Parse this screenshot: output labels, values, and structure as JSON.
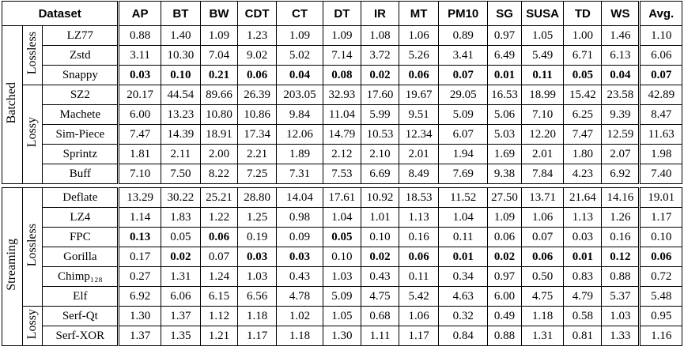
{
  "header": {
    "dataset": "Dataset",
    "columns": [
      "AP",
      "BT",
      "BW",
      "CDT",
      "CT",
      "DT",
      "IR",
      "MT",
      "PM10",
      "SG",
      "SUSA",
      "TD",
      "WS",
      "Avg."
    ]
  },
  "sections": [
    {
      "mode": "Batched",
      "groups": [
        {
          "kind": "Lossless",
          "rows": [
            {
              "name": "LZ77",
              "values": [
                "0.88",
                "1.40",
                "1.09",
                "1.23",
                "1.09",
                "1.09",
                "1.08",
                "1.06",
                "0.89",
                "0.97",
                "1.05",
                "1.00",
                "1.46",
                "1.10"
              ],
              "bold": []
            },
            {
              "name": "Zstd",
              "values": [
                "3.11",
                "10.30",
                "7.04",
                "9.02",
                "5.02",
                "7.14",
                "3.72",
                "5.26",
                "3.41",
                "6.49",
                "5.49",
                "6.71",
                "6.13",
                "6.06"
              ],
              "bold": []
            },
            {
              "name": "Snappy",
              "values": [
                "0.03",
                "0.10",
                "0.21",
                "0.06",
                "0.04",
                "0.08",
                "0.02",
                "0.06",
                "0.07",
                "0.01",
                "0.11",
                "0.05",
                "0.04",
                "0.07"
              ],
              "bold": [
                0,
                1,
                2,
                3,
                4,
                5,
                6,
                7,
                8,
                9,
                10,
                11,
                12,
                13
              ]
            }
          ]
        },
        {
          "kind": "Lossy",
          "rows": [
            {
              "name": "SZ2",
              "values": [
                "20.17",
                "44.54",
                "89.66",
                "26.39",
                "203.05",
                "32.93",
                "17.60",
                "19.67",
                "29.05",
                "16.53",
                "18.99",
                "15.42",
                "23.58",
                "42.89"
              ],
              "bold": []
            },
            {
              "name": "Machete",
              "values": [
                "6.00",
                "13.23",
                "10.80",
                "10.86",
                "9.84",
                "11.04",
                "5.99",
                "9.51",
                "5.09",
                "5.06",
                "7.10",
                "6.25",
                "9.39",
                "8.47"
              ],
              "bold": []
            },
            {
              "name": "Sim-Piece",
              "values": [
                "7.47",
                "14.39",
                "18.91",
                "17.34",
                "12.06",
                "14.79",
                "10.53",
                "12.34",
                "6.07",
                "5.03",
                "12.20",
                "7.47",
                "12.59",
                "11.63"
              ],
              "bold": []
            },
            {
              "name": "Sprintz",
              "values": [
                "1.81",
                "2.11",
                "2.00",
                "2.21",
                "1.89",
                "2.12",
                "2.10",
                "2.01",
                "1.94",
                "1.69",
                "2.01",
                "1.80",
                "2.07",
                "1.98"
              ],
              "bold": []
            },
            {
              "name": "Buff",
              "values": [
                "7.10",
                "7.50",
                "8.22",
                "7.25",
                "7.31",
                "7.53",
                "6.69",
                "8.49",
                "7.69",
                "9.38",
                "7.84",
                "4.23",
                "6.92",
                "7.40"
              ],
              "bold": []
            }
          ]
        }
      ]
    },
    {
      "mode": "Streaming",
      "groups": [
        {
          "kind": "Lossless",
          "rows": [
            {
              "name": "Deflate",
              "values": [
                "13.29",
                "30.22",
                "25.21",
                "28.80",
                "14.04",
                "17.61",
                "10.92",
                "18.53",
                "11.52",
                "27.50",
                "13.71",
                "21.64",
                "14.16",
                "19.01"
              ],
              "bold": []
            },
            {
              "name": "LZ4",
              "values": [
                "1.14",
                "1.83",
                "1.22",
                "1.25",
                "0.98",
                "1.04",
                "1.01",
                "1.13",
                "1.04",
                "1.09",
                "1.06",
                "1.13",
                "1.26",
                "1.17"
              ],
              "bold": []
            },
            {
              "name": "FPC",
              "values": [
                "0.13",
                "0.05",
                "0.06",
                "0.19",
                "0.09",
                "0.05",
                "0.10",
                "0.16",
                "0.11",
                "0.06",
                "0.07",
                "0.03",
                "0.16",
                "0.10"
              ],
              "bold": [
                0,
                2,
                5
              ]
            },
            {
              "name": "Gorilla",
              "values": [
                "0.17",
                "0.02",
                "0.07",
                "0.03",
                "0.03",
                "0.10",
                "0.02",
                "0.06",
                "0.01",
                "0.02",
                "0.06",
                "0.01",
                "0.12",
                "0.06"
              ],
              "bold": [
                1,
                3,
                4,
                6,
                7,
                8,
                9,
                10,
                11,
                12,
                13
              ]
            },
            {
              "name": "Chimp₁₂₈",
              "values": [
                "0.27",
                "1.31",
                "1.24",
                "1.03",
                "0.43",
                "1.03",
                "0.43",
                "0.11",
                "0.34",
                "0.97",
                "0.50",
                "0.83",
                "0.88",
                "0.72"
              ],
              "bold": []
            },
            {
              "name": "Elf",
              "values": [
                "6.92",
                "6.06",
                "6.15",
                "6.56",
                "4.78",
                "5.09",
                "4.75",
                "5.42",
                "4.63",
                "6.00",
                "4.75",
                "4.79",
                "5.37",
                "5.48"
              ],
              "bold": []
            }
          ]
        },
        {
          "kind": "Lossy",
          "rows": [
            {
              "name": "Serf-Qt",
              "values": [
                "1.30",
                "1.37",
                "1.12",
                "1.18",
                "1.02",
                "1.05",
                "0.68",
                "1.06",
                "0.32",
                "0.49",
                "1.18",
                "0.58",
                "1.03",
                "0.95"
              ],
              "bold": []
            },
            {
              "name": "Serf-XOR",
              "values": [
                "1.37",
                "1.35",
                "1.21",
                "1.17",
                "1.18",
                "1.30",
                "1.11",
                "1.17",
                "0.84",
                "0.88",
                "1.31",
                "0.81",
                "1.33",
                "1.16"
              ],
              "bold": []
            }
          ]
        }
      ]
    }
  ]
}
